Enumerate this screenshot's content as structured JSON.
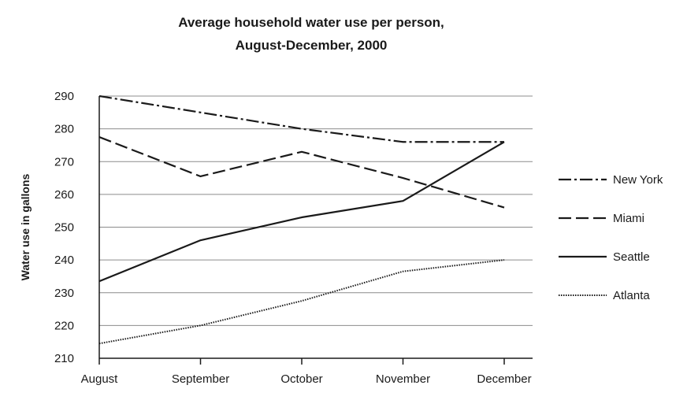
{
  "chart_data": {
    "type": "line",
    "title_line1": "Average household water use per person,",
    "title_line2": "August-December, 2000",
    "xlabel": "",
    "ylabel": "Water use in gallons",
    "categories": [
      "August",
      "September",
      "October",
      "November",
      "December"
    ],
    "ylim": [
      210,
      290
    ],
    "yticks": [
      210,
      220,
      230,
      240,
      250,
      260,
      270,
      280,
      290
    ],
    "grid": true,
    "legend_position": "right",
    "series": [
      {
        "name": "New York",
        "style": "dashdot",
        "values": [
          290,
          285,
          280,
          276,
          276
        ]
      },
      {
        "name": "Miami",
        "style": "dashed",
        "values": [
          277.5,
          265.5,
          273,
          265,
          256
        ]
      },
      {
        "name": "Seattle",
        "style": "solid",
        "values": [
          233.5,
          246,
          253,
          258,
          276
        ]
      },
      {
        "name": "Atlanta",
        "style": "dotted",
        "values": [
          214.5,
          220,
          227.5,
          236.5,
          240
        ]
      }
    ]
  }
}
